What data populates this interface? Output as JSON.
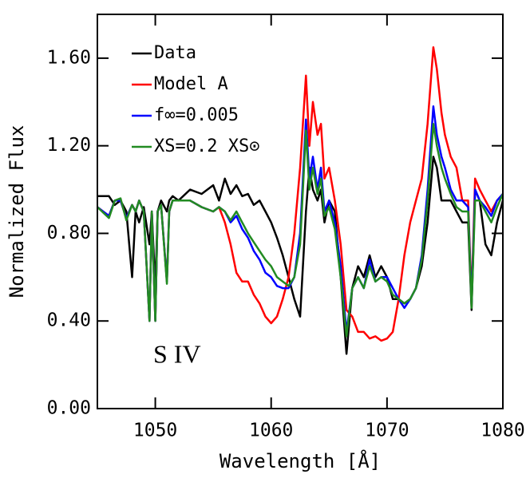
{
  "chart_data": {
    "type": "line",
    "xlabel": "Wavelength [Å]",
    "ylabel": "Normalized Flux",
    "annotation": "S IV",
    "xlim": [
      1045,
      1080
    ],
    "ylim": [
      0,
      1.8
    ],
    "xticks": [
      1050,
      1060,
      1070,
      1080
    ],
    "yticks": [
      {
        "value": 0,
        "label": "0.00"
      },
      {
        "value": 0.4,
        "label": "0.40"
      },
      {
        "value": 0.8,
        "label": "0.80"
      },
      {
        "value": 1.2,
        "label": "1.20"
      },
      {
        "value": 1.6,
        "label": "1.60"
      }
    ],
    "x": [
      1045,
      1046,
      1046.5,
      1047,
      1047.5,
      1048,
      1048.3,
      1048.6,
      1049,
      1049.5,
      1049.7,
      1050,
      1050.2,
      1050.5,
      1051,
      1051.2,
      1051.5,
      1052,
      1053,
      1054,
      1055,
      1055.5,
      1056,
      1056.5,
      1057,
      1057.5,
      1058,
      1058.5,
      1059,
      1059.5,
      1060,
      1060.5,
      1061,
      1061.5,
      1062,
      1062.5,
      1063,
      1063.3,
      1063.6,
      1064,
      1064.3,
      1064.6,
      1065,
      1065.5,
      1066,
      1066.5,
      1067,
      1067.5,
      1068,
      1068.5,
      1069,
      1069.5,
      1070,
      1070.5,
      1071,
      1071.5,
      1072,
      1072.5,
      1073,
      1073.5,
      1074,
      1074.3,
      1074.7,
      1075,
      1075.5,
      1076,
      1076.5,
      1077,
      1077.3,
      1077.6,
      1078,
      1078.5,
      1079,
      1079.5,
      1080
    ],
    "series": [
      {
        "name": "Data",
        "color": "#000000",
        "values": [
          0.97,
          0.97,
          0.93,
          0.95,
          0.9,
          0.6,
          0.9,
          0.85,
          0.92,
          0.75,
          0.9,
          0.55,
          0.9,
          0.95,
          0.9,
          0.95,
          0.97,
          0.95,
          1.0,
          0.98,
          1.02,
          0.95,
          1.05,
          0.98,
          1.02,
          0.97,
          0.98,
          0.93,
          0.95,
          0.9,
          0.85,
          0.78,
          0.7,
          0.6,
          0.5,
          0.42,
          0.9,
          1.1,
          1.0,
          0.95,
          1.0,
          0.85,
          0.95,
          0.9,
          0.6,
          0.25,
          0.55,
          0.65,
          0.6,
          0.7,
          0.6,
          0.65,
          0.6,
          0.5,
          0.5,
          0.48,
          0.5,
          0.55,
          0.65,
          0.85,
          1.15,
          1.1,
          0.95,
          0.95,
          0.95,
          0.9,
          0.85,
          0.85,
          0.45,
          1.0,
          0.95,
          0.75,
          0.7,
          0.85,
          0.95
        ]
      },
      {
        "name": "Model A",
        "color": "#ff0000",
        "values": [
          0.92,
          0.88,
          0.95,
          0.95,
          0.87,
          0.93,
          0.9,
          0.95,
          0.9,
          0.4,
          0.9,
          0.4,
          0.9,
          0.93,
          0.58,
          0.9,
          0.95,
          0.95,
          0.95,
          0.92,
          0.9,
          0.92,
          0.85,
          0.75,
          0.62,
          0.58,
          0.58,
          0.52,
          0.48,
          0.42,
          0.39,
          0.42,
          0.5,
          0.6,
          0.8,
          1.1,
          1.52,
          1.2,
          1.4,
          1.25,
          1.3,
          1.05,
          1.1,
          0.95,
          0.75,
          0.45,
          0.42,
          0.35,
          0.35,
          0.32,
          0.33,
          0.31,
          0.32,
          0.35,
          0.5,
          0.7,
          0.85,
          0.95,
          1.05,
          1.3,
          1.65,
          1.55,
          1.35,
          1.25,
          1.15,
          1.1,
          0.95,
          0.95,
          0.5,
          1.05,
          1.0,
          0.95,
          0.9,
          0.95,
          0.98
        ]
      },
      {
        "name": "f∞=0.005",
        "color": "#0000ff",
        "values": [
          0.92,
          0.88,
          0.95,
          0.95,
          0.87,
          0.93,
          0.9,
          0.95,
          0.9,
          0.4,
          0.9,
          0.4,
          0.9,
          0.93,
          0.58,
          0.9,
          0.95,
          0.95,
          0.95,
          0.92,
          0.9,
          0.92,
          0.9,
          0.85,
          0.88,
          0.82,
          0.78,
          0.72,
          0.68,
          0.62,
          0.6,
          0.56,
          0.55,
          0.55,
          0.6,
          0.8,
          1.32,
          1.05,
          1.15,
          1.0,
          1.1,
          0.9,
          0.95,
          0.85,
          0.65,
          0.35,
          0.55,
          0.6,
          0.55,
          0.68,
          0.58,
          0.6,
          0.6,
          0.55,
          0.5,
          0.46,
          0.5,
          0.55,
          0.7,
          1.0,
          1.38,
          1.25,
          1.15,
          1.1,
          1.0,
          0.95,
          0.95,
          0.92,
          0.48,
          1.0,
          0.95,
          0.92,
          0.88,
          0.95,
          0.98
        ]
      },
      {
        "name": "XS=0.2 XS⊙",
        "color": "#228b22",
        "values": [
          0.92,
          0.87,
          0.95,
          0.96,
          0.86,
          0.93,
          0.9,
          0.95,
          0.9,
          0.4,
          0.9,
          0.4,
          0.9,
          0.93,
          0.57,
          0.9,
          0.95,
          0.95,
          0.95,
          0.92,
          0.9,
          0.92,
          0.9,
          0.86,
          0.9,
          0.85,
          0.8,
          0.76,
          0.72,
          0.68,
          0.65,
          0.6,
          0.58,
          0.56,
          0.6,
          0.75,
          1.27,
          1.0,
          1.1,
          0.98,
          1.05,
          0.88,
          0.92,
          0.82,
          0.6,
          0.33,
          0.55,
          0.6,
          0.55,
          0.65,
          0.58,
          0.6,
          0.58,
          0.52,
          0.5,
          0.48,
          0.5,
          0.55,
          0.68,
          0.95,
          1.3,
          1.2,
          1.1,
          1.05,
          0.98,
          0.92,
          0.9,
          0.9,
          0.46,
          0.95,
          0.95,
          0.9,
          0.85,
          0.92,
          0.98
        ]
      }
    ]
  }
}
